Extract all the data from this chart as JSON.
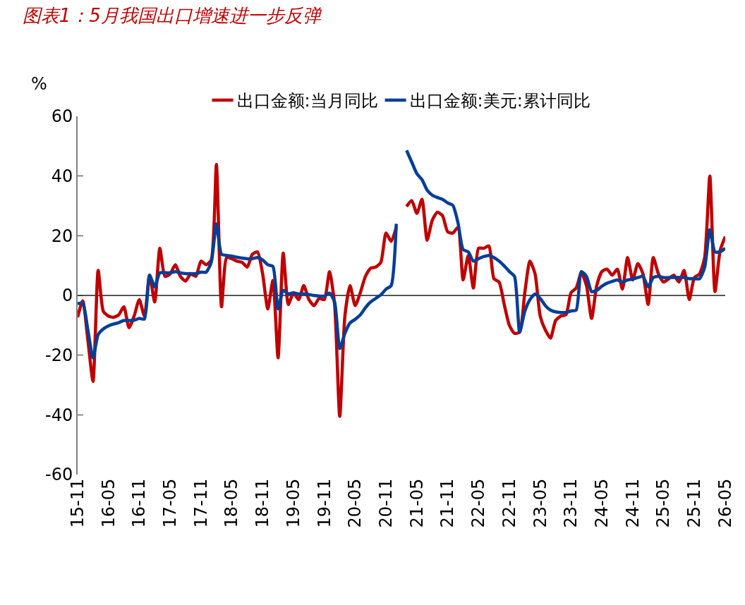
{
  "chart_data": {
    "type": "line",
    "title": "图表1：5月我国出口增速进一步反弹",
    "ylabel": "%",
    "categories": [
      "15-11",
      null,
      null,
      null,
      null,
      null,
      "16-05",
      null,
      null,
      null,
      null,
      null,
      "16-11",
      null,
      null,
      null,
      null,
      null,
      "17-05",
      null,
      null,
      null,
      null,
      null,
      "17-11",
      null,
      null,
      null,
      null,
      null,
      "18-05",
      null,
      null,
      null,
      null,
      null,
      "18-11",
      null,
      null,
      null,
      null,
      null,
      "19-05",
      null,
      null,
      null,
      null,
      null,
      "19-11",
      null,
      null,
      null,
      null,
      null,
      "20-05",
      null,
      null,
      null,
      null,
      null,
      "20-11",
      null,
      null,
      null,
      null,
      null,
      "21-05",
      null,
      null,
      null,
      null,
      null,
      "21-11",
      null,
      null,
      null,
      null,
      null,
      "22-05",
      null,
      null,
      null,
      null,
      null,
      "22-11",
      null,
      null,
      null,
      null,
      null,
      "23-05",
      null,
      null,
      null,
      null,
      null,
      "23-11",
      null,
      null,
      null,
      null,
      null,
      "24-05",
      null,
      null,
      null,
      null,
      null,
      "24-11",
      null,
      null,
      null,
      null,
      null,
      "25-05",
      null,
      null,
      null,
      null,
      null,
      "25-11",
      null,
      null,
      null,
      null,
      null,
      "26-05"
    ],
    "series": [
      {
        "name": "出口金额:当月同比",
        "color": "#c00000",
        "values": [
          -7.3,
          -1.8,
          -15,
          -28.8,
          8.4,
          -5.3,
          -6.9,
          -7.3,
          -6.5,
          -3.8,
          -10.8,
          -6.9,
          -1.4,
          -6.9,
          6.8,
          -2.2,
          15.8,
          6.4,
          7.2,
          10.3,
          6.4,
          4.8,
          7.2,
          6.4,
          11.5,
          10.3,
          11.9,
          43.9,
          -3.8,
          12.7,
          12.3,
          11.5,
          11.1,
          9.5,
          13.8,
          14.6,
          7.2,
          -4.5,
          5,
          -20.9,
          14.2,
          -3,
          0.9,
          -1.4,
          3.3,
          -1.4,
          -3.4,
          -1,
          -1.4,
          8,
          -3,
          -40.5,
          -6.9,
          3.3,
          -3.4,
          0.9,
          6.4,
          9.1,
          9.5,
          11.1,
          20.9,
          18.1,
          22.8,
          null,
          29.8,
          31.8,
          27.5,
          32.2,
          18.5,
          25.2,
          27.9,
          26.7,
          21.3,
          20.9,
          22.8,
          5.2,
          13.4,
          2.5,
          15.8,
          15.8,
          16.6,
          5.6,
          4.5,
          -3,
          -10,
          -12.7,
          -12.3,
          0.9,
          11.5,
          7.2,
          -6.9,
          -11.6,
          -14.3,
          -8.4,
          -6.9,
          -6.5,
          0.9,
          2.5,
          7.6,
          3.3,
          -7.7,
          3.3,
          8,
          8.8,
          6.8,
          8.8,
          2.1,
          12.7,
          5.2,
          10.7,
          7.2,
          -3,
          12.7,
          7.2,
          4.5,
          5.6,
          6.8,
          4.5,
          8.4,
          -1.4,
          6,
          7.2,
          12.7,
          40,
          1.3,
          15,
          19.7
        ]
      },
      {
        "name": "出口金额:美元:累计同比",
        "color": "#003f98",
        "values": [
          -2.8,
          -2.6,
          -11.6,
          -20.9,
          -13.1,
          -11.2,
          -10.2,
          -9.6,
          -9.1,
          -8.4,
          -8.4,
          -8.3,
          -7.7,
          -7.9,
          6.8,
          2.9,
          7.6,
          7.6,
          7.6,
          8,
          7.6,
          7.3,
          7.3,
          7.3,
          7.8,
          7.8,
          11.1,
          24,
          13.8,
          13.4,
          13.2,
          12.8,
          12.5,
          12.3,
          12.3,
          12.7,
          11.9,
          10.3,
          9.7,
          -4.5,
          1.7,
          0.5,
          0.9,
          0.5,
          0.5,
          0.3,
          0,
          -0.2,
          -0.2,
          0.8,
          -2.2,
          -17.8,
          -12.7,
          -9.2,
          -8,
          -6.5,
          -4.1,
          -2.2,
          -1,
          0.2,
          2.1,
          3.3,
          24,
          null,
          48.6,
          44.7,
          40.8,
          38.8,
          35.3,
          33.6,
          32.8,
          32.2,
          31,
          30.2,
          24.4,
          15.4,
          14.6,
          11.5,
          12.3,
          13,
          13.4,
          12.7,
          11.5,
          9.9,
          8,
          6.4,
          -12.3,
          -5.3,
          -1.4,
          0.5,
          -1,
          -3.4,
          -4.9,
          -5.5,
          -5.7,
          -5.7,
          -5.2,
          -4.9,
          8,
          6.4,
          1.3,
          1.7,
          3.1,
          4.1,
          4.7,
          5.2,
          4.5,
          5.2,
          5.5,
          6,
          6.4,
          2.9,
          6,
          6.4,
          6,
          6,
          6,
          6,
          6,
          5.6,
          5.6,
          5.6,
          9.5,
          22,
          14.6,
          14.6,
          15.8
        ]
      }
    ],
    "ylim": [
      -60,
      60
    ],
    "yticks": [
      -60,
      -40,
      -20,
      0,
      20,
      40,
      60
    ],
    "legend": "top",
    "marker": "none",
    "line_style": "solid"
  }
}
